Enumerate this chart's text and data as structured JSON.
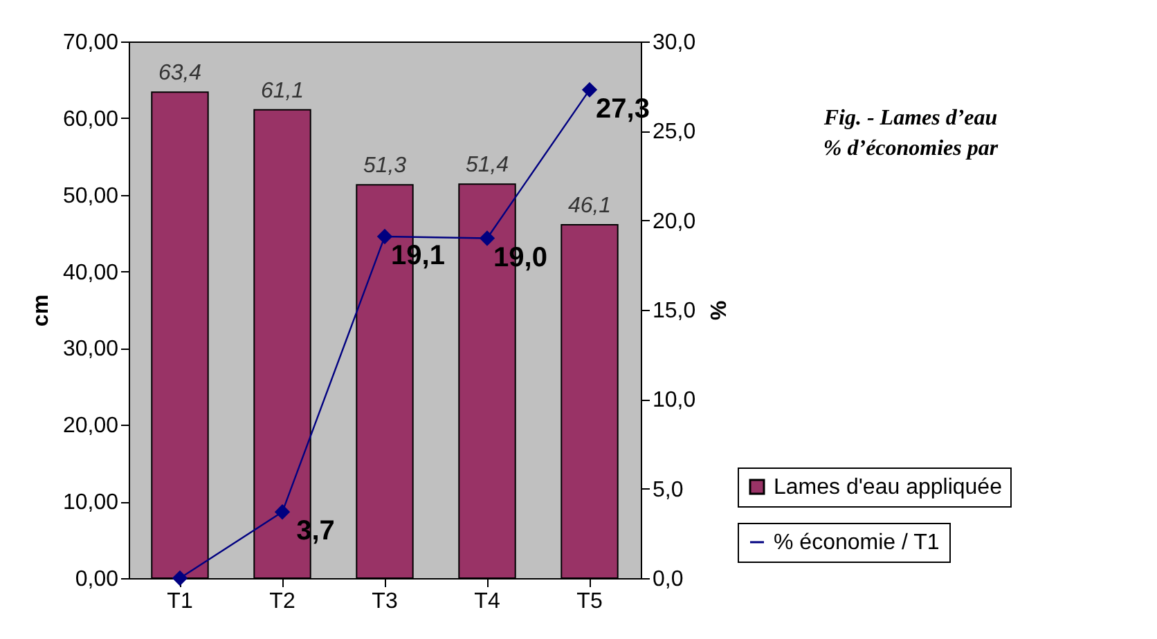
{
  "chart_data": {
    "type": "bar",
    "categories": [
      "T1",
      "T2",
      "T3",
      "T4",
      "T5"
    ],
    "ylabel": "cm",
    "y2label": "%",
    "ylim": [
      0,
      70
    ],
    "yticks": [
      {
        "value": 0,
        "label": "0,00"
      },
      {
        "value": 10,
        "label": "10,00"
      },
      {
        "value": 20,
        "label": "20,00"
      },
      {
        "value": 30,
        "label": "30,00"
      },
      {
        "value": 40,
        "label": "40,00"
      },
      {
        "value": 50,
        "label": "50,00"
      },
      {
        "value": 60,
        "label": "60,00"
      },
      {
        "value": 70,
        "label": "70,00"
      }
    ],
    "y2lim": [
      0,
      30
    ],
    "y2ticks": [
      {
        "value": 0,
        "label": "0,0"
      },
      {
        "value": 5,
        "label": "5,0"
      },
      {
        "value": 10,
        "label": "10,0"
      },
      {
        "value": 15,
        "label": "15,0"
      },
      {
        "value": 20,
        "label": "20,0"
      },
      {
        "value": 25,
        "label": "25,0"
      },
      {
        "value": 30,
        "label": "30,0"
      }
    ],
    "series": [
      {
        "name": "Lames d'eau appliquée",
        "color": "#993366",
        "values": [
          63.4,
          61.1,
          51.3,
          51.4,
          46.1
        ],
        "value_labels": [
          "63,4",
          "61,1",
          "51,3",
          "51,4",
          "46,1"
        ]
      },
      {
        "name": "% économie / T1",
        "type": "line",
        "axis": "y2",
        "color": "#000080",
        "marker": "diamond",
        "values": [
          0,
          3.7,
          19.1,
          19.0,
          27.3
        ],
        "value_labels": [
          null,
          "3,7",
          "19,1",
          "19,0",
          "27,3"
        ]
      }
    ],
    "legend": "bottom right",
    "grid": false,
    "annotations": [
      "Fig. - Lames d’eau",
      "% d’économies par"
    ]
  }
}
